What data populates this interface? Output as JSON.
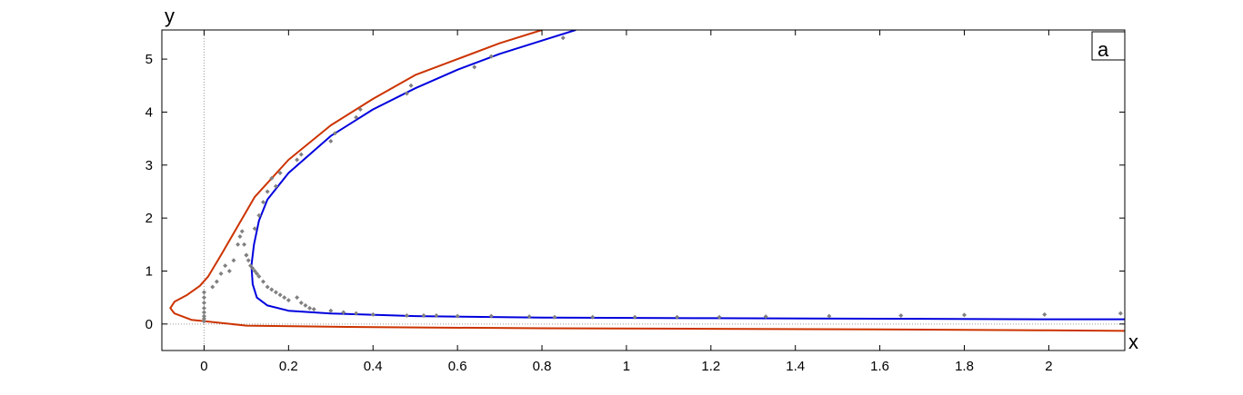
{
  "chart_data": {
    "type": "line",
    "title": "",
    "xlabel": "x",
    "ylabel": "y",
    "panel_label": "a",
    "xlim": [
      -0.1,
      2.18
    ],
    "ylim": [
      -0.5,
      5.55
    ],
    "grid": false,
    "xticks": [
      0,
      0.2,
      0.4,
      0.6,
      0.8,
      1,
      1.2,
      1.4,
      1.6,
      1.8,
      2
    ],
    "xtick_labels": [
      "0",
      "0.2",
      "0.4",
      "0.6",
      "0.8",
      "1",
      "1.2",
      "1.4",
      "1.6",
      "1.8",
      "2"
    ],
    "yticks": [
      0,
      1,
      2,
      3,
      4,
      5
    ],
    "ytick_labels": [
      "0",
      "1",
      "2",
      "3",
      "4",
      "5"
    ],
    "reference_lines": {
      "x_zero": true,
      "y_zero": true,
      "style": "dotted"
    },
    "colors": {
      "red_curve": "#cc3300",
      "blue_curve": "#0000dd",
      "points": "#808080",
      "axes": "#000000",
      "reference": "#999999"
    },
    "series": [
      {
        "color": "#cc3300",
        "style": "line",
        "x": [
          0.8,
          0.7,
          0.6,
          0.5,
          0.4,
          0.3,
          0.2,
          0.12,
          0.08,
          0.04,
          0.01,
          -0.01,
          -0.04,
          -0.07,
          -0.08,
          -0.07,
          -0.03,
          0.1,
          0.4,
          0.8,
          1.2,
          1.6,
          2.0,
          2.18
        ],
        "y": [
          5.55,
          5.3,
          5.0,
          4.7,
          4.25,
          3.75,
          3.1,
          2.4,
          1.85,
          1.3,
          0.9,
          0.72,
          0.55,
          0.42,
          0.3,
          0.2,
          0.08,
          -0.03,
          -0.06,
          -0.08,
          -0.09,
          -0.1,
          -0.12,
          -0.13
        ]
      },
      {
        "color": "#0000dd",
        "style": "line",
        "x": [
          0.88,
          0.8,
          0.7,
          0.6,
          0.5,
          0.4,
          0.3,
          0.2,
          0.15,
          0.13,
          0.118,
          0.112,
          0.115,
          0.125,
          0.15,
          0.2,
          0.3,
          0.5,
          0.8,
          1.2,
          1.6,
          2.0,
          2.18
        ],
        "y": [
          5.55,
          5.35,
          5.1,
          4.8,
          4.45,
          4.05,
          3.55,
          2.85,
          2.35,
          1.95,
          1.5,
          1.1,
          0.75,
          0.5,
          0.35,
          0.25,
          0.2,
          0.15,
          0.12,
          0.11,
          0.1,
          0.09,
          0.09
        ]
      },
      {
        "color": "#808080",
        "style": "points",
        "x": [
          0,
          0,
          0,
          0,
          0,
          0,
          0,
          0,
          0.02,
          0.03,
          0.04,
          0.05,
          0.06,
          0.07,
          0.08,
          0.085,
          0.09,
          0.095,
          0.1,
          0.105,
          0.11,
          0.115,
          0.12,
          0.125,
          0.13,
          0.14,
          0.15,
          0.16,
          0.17,
          0.18,
          0.19,
          0.2,
          0.22,
          0.23,
          0.24,
          0.25,
          0.26,
          0.3,
          0.33,
          0.36,
          0.4,
          0.48,
          0.52,
          0.55,
          0.6,
          0.68,
          0.77,
          0.83,
          0.92,
          1.02,
          1.12,
          1.22,
          1.33,
          1.48,
          1.65,
          1.8,
          1.99,
          2.17,
          0.1,
          0.12,
          0.13,
          0.14,
          0.15,
          0.16,
          0.17,
          0.18,
          0.22,
          0.23,
          0.3,
          0.31,
          0.36,
          0.37,
          0.48,
          0.49,
          0.64,
          0.68,
          0.85
        ],
        "y": [
          0.05,
          0.1,
          0.15,
          0.22,
          0.3,
          0.4,
          0.5,
          0.6,
          0.7,
          0.8,
          0.95,
          1.1,
          1.0,
          1.2,
          1.5,
          1.65,
          1.75,
          1.5,
          1.3,
          1.2,
          1.1,
          1.05,
          1.0,
          0.95,
          0.9,
          0.8,
          0.7,
          0.65,
          0.6,
          0.55,
          0.5,
          0.45,
          0.5,
          0.4,
          0.35,
          0.3,
          0.28,
          0.25,
          0.22,
          0.2,
          0.18,
          0.16,
          0.16,
          0.16,
          0.15,
          0.15,
          0.14,
          0.13,
          0.13,
          0.13,
          0.13,
          0.13,
          0.14,
          0.15,
          0.16,
          0.17,
          0.18,
          0.2,
          1.3,
          1.8,
          2.05,
          2.3,
          2.5,
          2.75,
          2.6,
          2.85,
          3.1,
          3.2,
          3.45,
          3.6,
          3.9,
          4.05,
          4.35,
          4.5,
          4.85,
          5.05,
          5.4
        ]
      }
    ]
  }
}
